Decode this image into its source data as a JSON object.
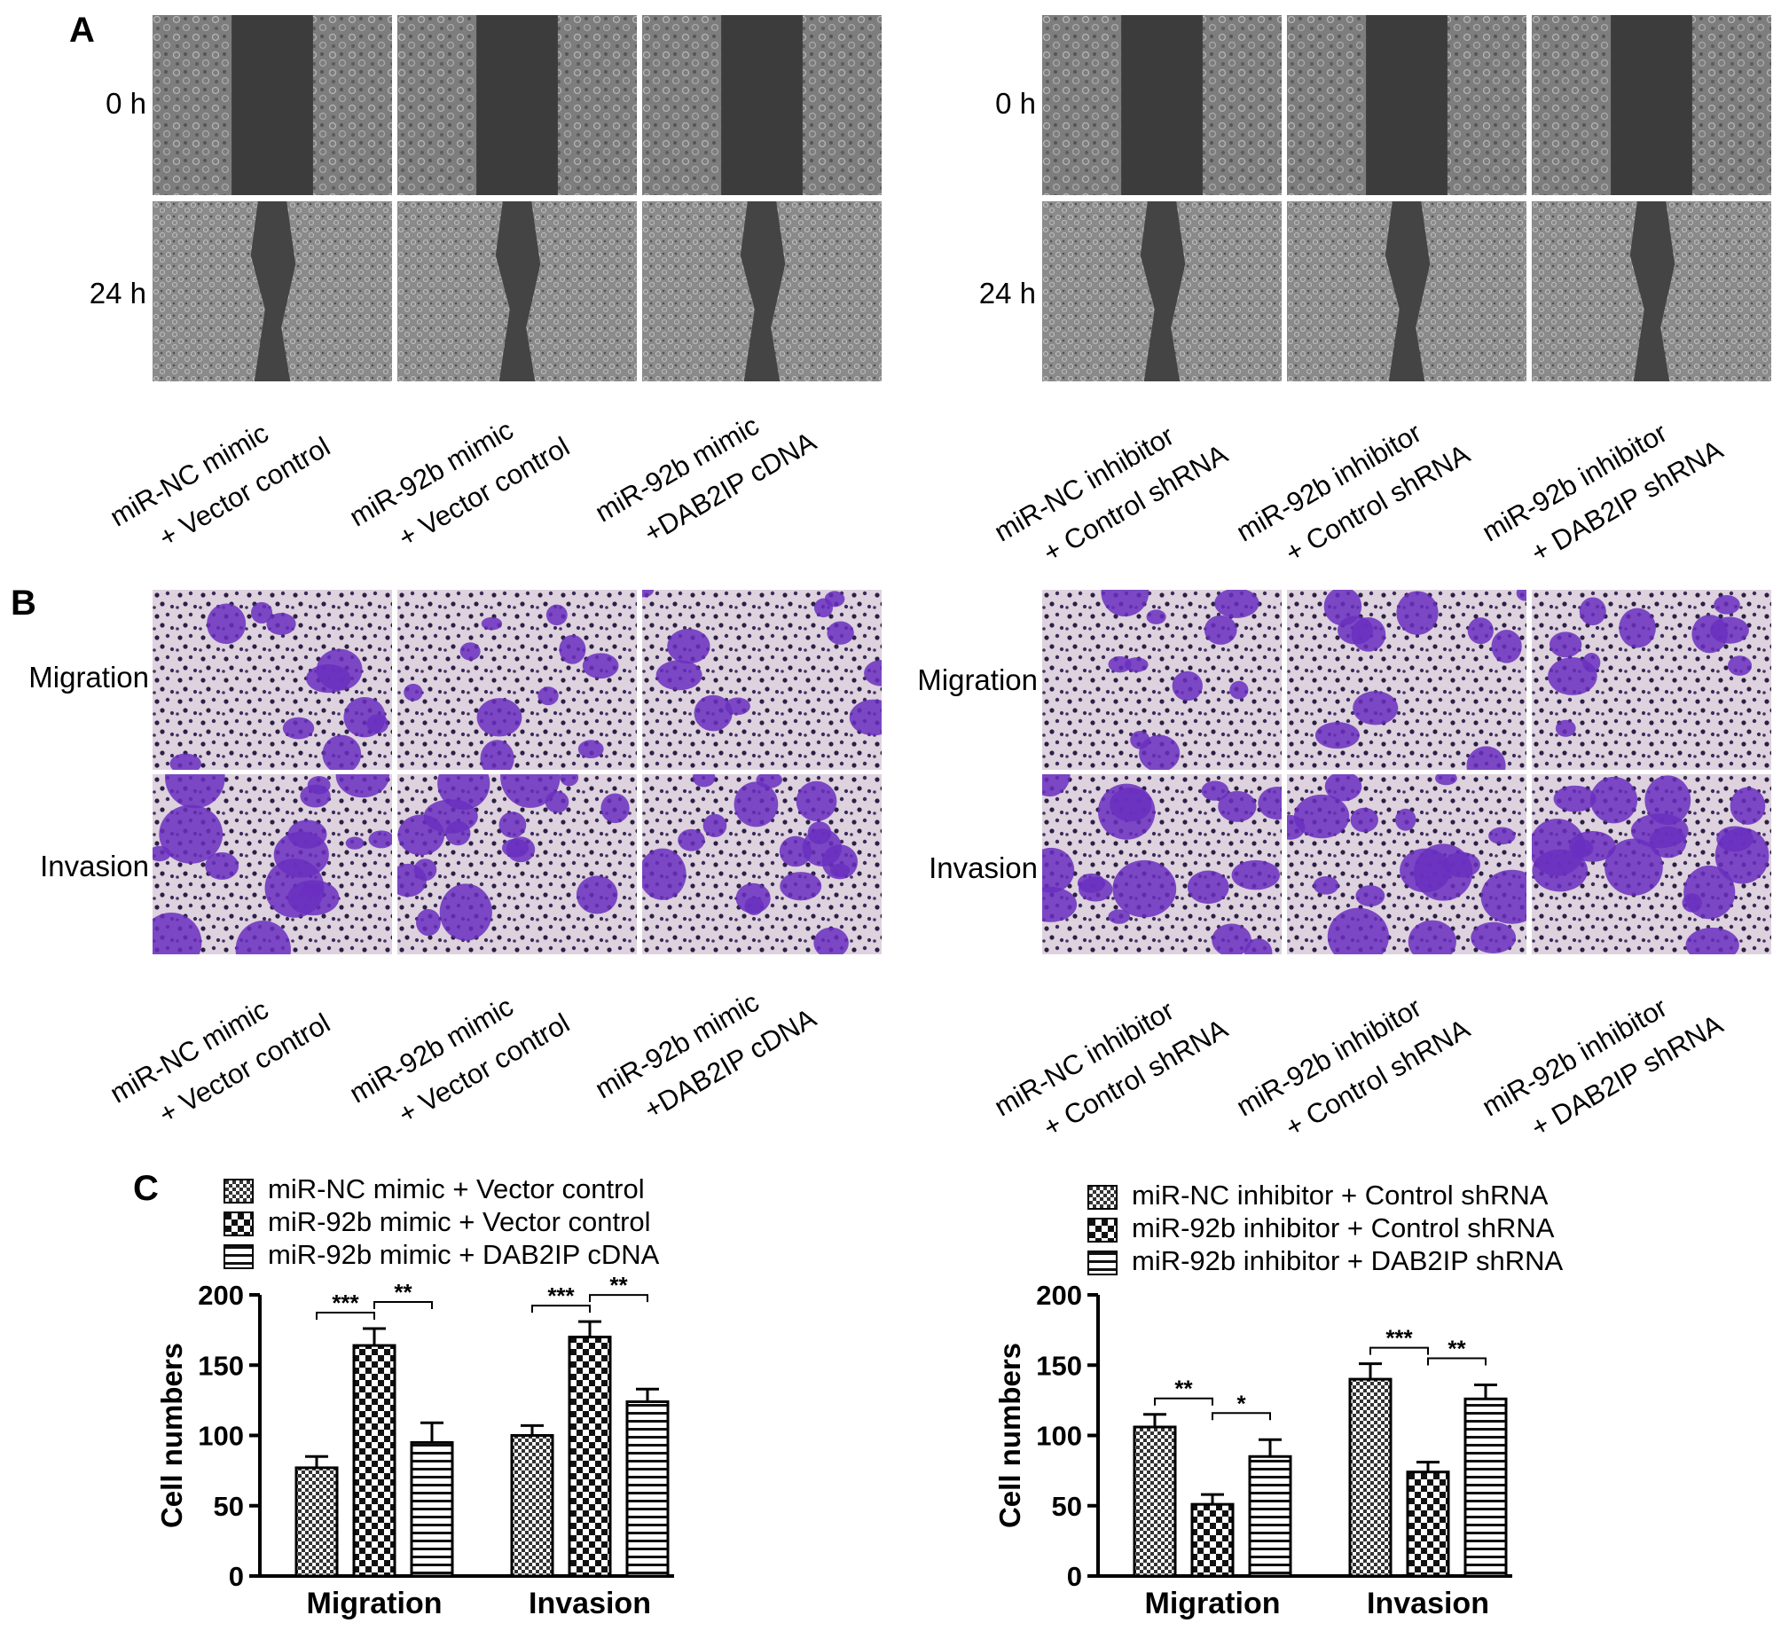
{
  "panelA": {
    "letter": "A",
    "rows": [
      "0 h",
      "24 h"
    ],
    "left_conditions": [
      [
        "miR-NC mimic",
        "+ Vector control"
      ],
      [
        "miR-92b mimic",
        "+ Vector control"
      ],
      [
        "miR-92b mimic",
        "+DAB2IP cDNA"
      ]
    ],
    "right_conditions": [
      [
        "miR-NC inhibitor",
        "+ Control shRNA"
      ],
      [
        "miR-92b inhibitor",
        "+ Control shRNA"
      ],
      [
        "miR-92b inhibitor",
        "+ DAB2IP shRNA"
      ]
    ]
  },
  "panelB": {
    "letter": "B",
    "rows": [
      "Migration",
      "Invasion"
    ],
    "left_conditions": [
      [
        "miR-NC mimic",
        "+ Vector control"
      ],
      [
        "miR-92b mimic",
        "+ Vector control"
      ],
      [
        "miR-92b mimic",
        "+DAB2IP cDNA"
      ]
    ],
    "right_conditions": [
      [
        "miR-NC inhibitor",
        "+ Control shRNA"
      ],
      [
        "miR-92b inhibitor",
        "+ Control shRNA"
      ],
      [
        "miR-92b inhibitor",
        "+ DAB2IP shRNA"
      ]
    ]
  },
  "panelC": {
    "letter": "C"
  },
  "colors": {
    "wound_bg": "#7a7a7a",
    "wound_gap": "#3c3c3c",
    "transwell_bg": "#dcd0dc",
    "stain": "#6a2fc0"
  },
  "chart_data": [
    {
      "type": "bar",
      "ylabel": "Cell numbers",
      "ylim": [
        0,
        200
      ],
      "yticks": [
        0,
        50,
        100,
        150,
        200
      ],
      "categories": [
        "Migration",
        "Invasion"
      ],
      "series": [
        {
          "name": "miR-NC mimic + Vector control",
          "pattern": "fine-check",
          "values": [
            77,
            100
          ],
          "errors": [
            8,
            7
          ]
        },
        {
          "name": "miR-92b mimic + Vector control",
          "pattern": "coarse-check",
          "values": [
            164,
            170
          ],
          "errors": [
            12,
            11
          ]
        },
        {
          "name": "miR-92b mimic + DAB2IP cDNA",
          "pattern": "horizontal-lines",
          "values": [
            95,
            124
          ],
          "errors": [
            14,
            9
          ]
        }
      ],
      "significance": [
        {
          "category": "Migration",
          "between": [
            0,
            1
          ],
          "label": "***"
        },
        {
          "category": "Migration",
          "between": [
            1,
            2
          ],
          "label": "**"
        },
        {
          "category": "Invasion",
          "between": [
            0,
            1
          ],
          "label": "***"
        },
        {
          "category": "Invasion",
          "between": [
            1,
            2
          ],
          "label": "**"
        }
      ]
    },
    {
      "type": "bar",
      "ylabel": "Cell numbers",
      "ylim": [
        0,
        200
      ],
      "yticks": [
        0,
        50,
        100,
        150,
        200
      ],
      "categories": [
        "Migration",
        "Invasion"
      ],
      "series": [
        {
          "name": "miR-NC inhibitor + Control shRNA",
          "pattern": "fine-check",
          "values": [
            106,
            140
          ],
          "errors": [
            9,
            11
          ]
        },
        {
          "name": "miR-92b inhibitor + Control shRNA",
          "pattern": "coarse-check",
          "values": [
            51,
            74
          ],
          "errors": [
            7,
            7
          ]
        },
        {
          "name": "miR-92b inhibitor + DAB2IP shRNA",
          "pattern": "horizontal-lines",
          "values": [
            85,
            126
          ],
          "errors": [
            12,
            10
          ]
        }
      ],
      "significance": [
        {
          "category": "Migration",
          "between": [
            0,
            1
          ],
          "label": "**"
        },
        {
          "category": "Migration",
          "between": [
            1,
            2
          ],
          "label": "*"
        },
        {
          "category": "Invasion",
          "between": [
            0,
            1
          ],
          "label": "***"
        },
        {
          "category": "Invasion",
          "between": [
            1,
            2
          ],
          "label": "**"
        }
      ]
    }
  ]
}
